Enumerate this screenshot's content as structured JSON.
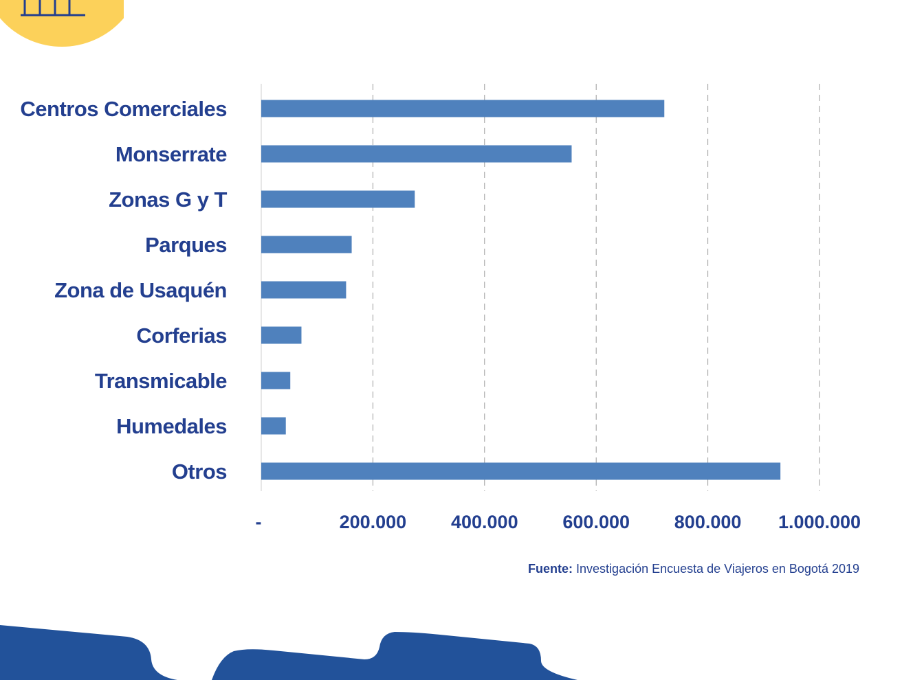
{
  "colors": {
    "bar": "#4f81bd",
    "text": "#233f8f",
    "grid": "#9a9a9a",
    "badge": "#fcd15a",
    "footer": "#22529a"
  },
  "icons": {
    "badge": "building-icon"
  },
  "source": {
    "label": "Fuente:",
    "text": "Investigación Encuesta de Viajeros en Bogotá 2019"
  },
  "chart_data": {
    "type": "bar",
    "orientation": "horizontal",
    "categories": [
      "Centros Comerciales",
      "Monserrate",
      "Zonas G y T",
      "Parques",
      "Zona de Usaquén",
      "Corferias",
      "Transmicable",
      "Humedales",
      "Otros"
    ],
    "values": [
      722000,
      556000,
      275000,
      162000,
      152000,
      72000,
      52000,
      44000,
      930000
    ],
    "xlim": [
      0,
      1000000
    ],
    "xticks": [
      0,
      200000,
      400000,
      600000,
      800000,
      1000000
    ],
    "xtick_labels": [
      "-",
      "200.000",
      "400.000",
      "600.000",
      "800.000",
      "1.000.000"
    ],
    "grid": "vertical dashed",
    "legend": "none"
  }
}
